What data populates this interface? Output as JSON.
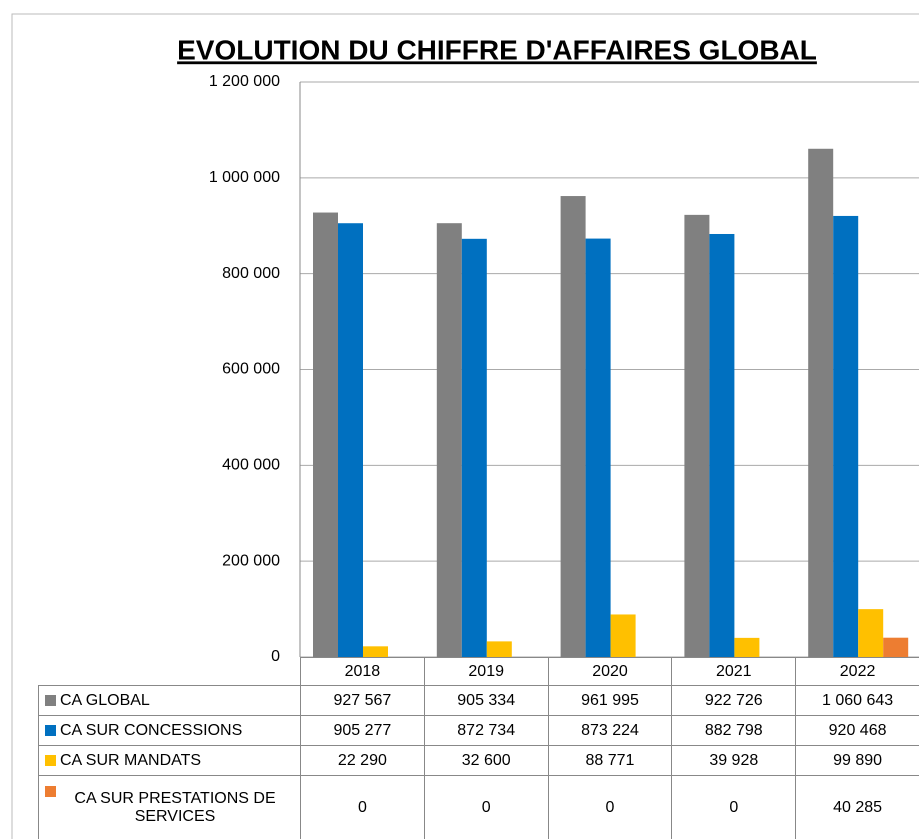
{
  "chart_data": {
    "type": "bar",
    "title": "EVOLUTION DU CHIFFRE D'AFFAIRES GLOBAL",
    "categories": [
      "2018",
      "2019",
      "2020",
      "2021",
      "2022"
    ],
    "series": [
      {
        "name": "CA GLOBAL",
        "color": "#808080",
        "values": [
          927567,
          905334,
          961995,
          922726,
          1060643
        ],
        "value_labels": [
          "927 567",
          "905 334",
          "961 995",
          "922 726",
          "1 060 643"
        ]
      },
      {
        "name": "CA SUR CONCESSIONS",
        "color": "#0070c0",
        "values": [
          905277,
          872734,
          873224,
          882798,
          920468
        ],
        "value_labels": [
          "905 277",
          "872 734",
          "873 224",
          "882 798",
          "920 468"
        ]
      },
      {
        "name": "CA SUR MANDATS",
        "color": "#ffc000",
        "values": [
          22290,
          32600,
          88771,
          39928,
          99890
        ],
        "value_labels": [
          "22 290",
          "32 600",
          "88 771",
          "39 928",
          "99 890"
        ]
      },
      {
        "name": "CA SUR PRESTATIONS DE SERVICES",
        "color": "#ed7d31",
        "values": [
          0,
          0,
          0,
          0,
          40285
        ],
        "value_labels": [
          "0",
          "0",
          "0",
          "0",
          "40 285"
        ]
      }
    ],
    "ylim": [
      0,
      1200000
    ],
    "yticks": [
      0,
      {
        "value": 200000,
        "label": "200 000"
      },
      {
        "value": 400000,
        "label": "400 000"
      },
      {
        "value": 600000,
        "label": "600 000"
      },
      {
        "value": 800000,
        "label": "800 000"
      },
      {
        "value": 1000000,
        "label": "1 000 000"
      },
      {
        "value": 1200000,
        "label": "1 200 000"
      }
    ],
    "grid": true
  }
}
